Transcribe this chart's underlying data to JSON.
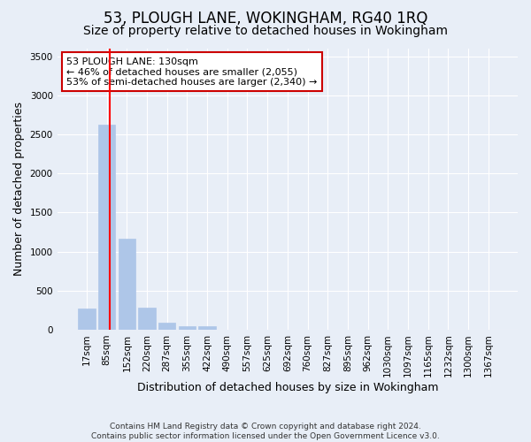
{
  "title": "53, PLOUGH LANE, WOKINGHAM, RG40 1RQ",
  "subtitle": "Size of property relative to detached houses in Wokingham",
  "xlabel": "Distribution of detached houses by size in Wokingham",
  "ylabel": "Number of detached properties",
  "bar_labels": [
    "17sqm",
    "85sqm",
    "152sqm",
    "220sqm",
    "287sqm",
    "355sqm",
    "422sqm",
    "490sqm",
    "557sqm",
    "625sqm",
    "692sqm",
    "760sqm",
    "827sqm",
    "895sqm",
    "962sqm",
    "1030sqm",
    "1097sqm",
    "1165sqm",
    "1232sqm",
    "1300sqm",
    "1367sqm"
  ],
  "bar_values": [
    275,
    2630,
    1160,
    285,
    90,
    45,
    40,
    0,
    0,
    0,
    0,
    0,
    0,
    0,
    0,
    0,
    0,
    0,
    0,
    0,
    0
  ],
  "bar_color": "#aec6e8",
  "bar_edge_color": "#aec6e8",
  "background_color": "#e8eef7",
  "grid_color": "#ffffff",
  "annotation_text": "53 PLOUGH LANE: 130sqm\n← 46% of detached houses are smaller (2,055)\n53% of semi-detached houses are larger (2,340) →",
  "annotation_box_color": "#ffffff",
  "annotation_box_edge": "#cc0000",
  "ylim": [
    0,
    3600
  ],
  "yticks": [
    0,
    500,
    1000,
    1500,
    2000,
    2500,
    3000,
    3500
  ],
  "footer1": "Contains HM Land Registry data © Crown copyright and database right 2024.",
  "footer2": "Contains public sector information licensed under the Open Government Licence v3.0.",
  "title_fontsize": 12,
  "subtitle_fontsize": 10,
  "ylabel_fontsize": 9,
  "xlabel_fontsize": 9,
  "tick_fontsize": 7.5,
  "annot_fontsize": 8
}
